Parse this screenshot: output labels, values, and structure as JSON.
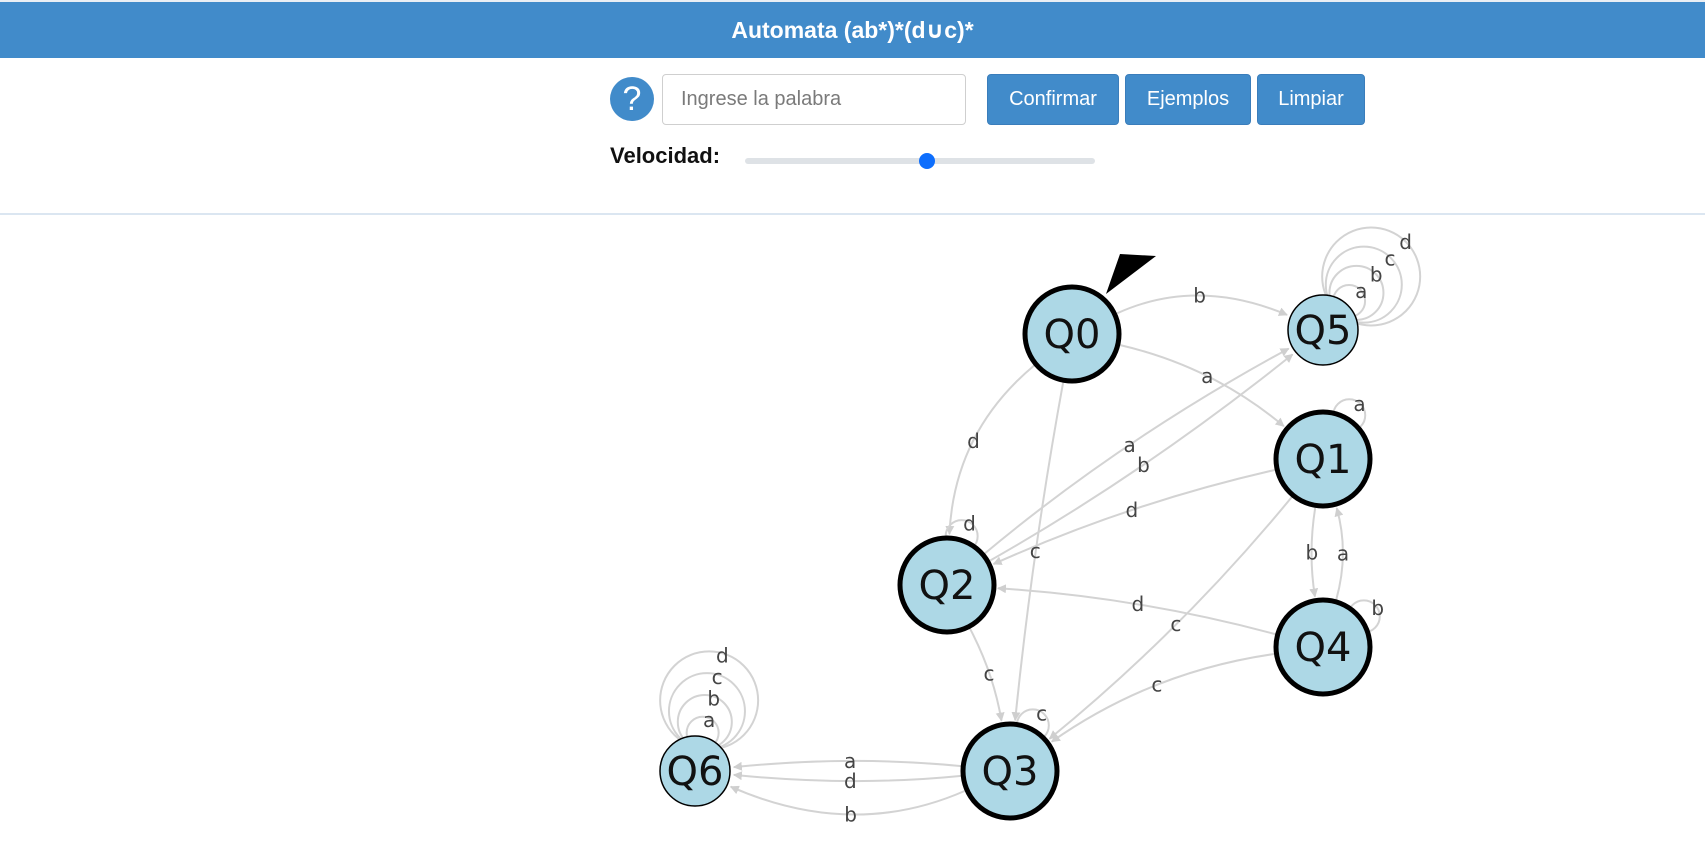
{
  "header": {
    "title": "Automata (ab*)*(d∪c)*"
  },
  "controls": {
    "help_symbol": "?",
    "word_placeholder": "Ingrese la palabra",
    "word_value": "",
    "buttons": {
      "confirm": "Confirmar",
      "examples": "Ejemplos",
      "clear": "Limpiar"
    },
    "speed_label": "Velocidad:",
    "speed_value": 0.52
  },
  "automaton": {
    "initial_state": "Q0",
    "states": [
      {
        "id": "Q0",
        "final": true
      },
      {
        "id": "Q1",
        "final": true
      },
      {
        "id": "Q2",
        "final": true
      },
      {
        "id": "Q3",
        "final": true
      },
      {
        "id": "Q4",
        "final": true
      },
      {
        "id": "Q5",
        "final": false
      },
      {
        "id": "Q6",
        "final": false
      }
    ],
    "transitions": [
      {
        "from": "Q0",
        "to": "Q5",
        "symbol": "b"
      },
      {
        "from": "Q0",
        "to": "Q1",
        "symbol": "a"
      },
      {
        "from": "Q0",
        "to": "Q2",
        "symbol": "d"
      },
      {
        "from": "Q0",
        "to": "Q3",
        "symbol": "c"
      },
      {
        "from": "Q1",
        "to": "Q1",
        "symbol": "a"
      },
      {
        "from": "Q1",
        "to": "Q4",
        "symbol": "b"
      },
      {
        "from": "Q1",
        "to": "Q2",
        "symbol": "d"
      },
      {
        "from": "Q1",
        "to": "Q3",
        "symbol": "c"
      },
      {
        "from": "Q2",
        "to": "Q2",
        "symbol": "d"
      },
      {
        "from": "Q2",
        "to": "Q3",
        "symbol": "c"
      },
      {
        "from": "Q2",
        "to": "Q5",
        "symbol": "a"
      },
      {
        "from": "Q2",
        "to": "Q5",
        "symbol": "b"
      },
      {
        "from": "Q3",
        "to": "Q3",
        "symbol": "c"
      },
      {
        "from": "Q3",
        "to": "Q6",
        "symbol": "a"
      },
      {
        "from": "Q3",
        "to": "Q6",
        "symbol": "d"
      },
      {
        "from": "Q3",
        "to": "Q6",
        "symbol": "b"
      },
      {
        "from": "Q4",
        "to": "Q4",
        "symbol": "b"
      },
      {
        "from": "Q4",
        "to": "Q1",
        "symbol": "a"
      },
      {
        "from": "Q4",
        "to": "Q2",
        "symbol": "d"
      },
      {
        "from": "Q4",
        "to": "Q3",
        "symbol": "c"
      },
      {
        "from": "Q5",
        "to": "Q5",
        "symbol": "a"
      },
      {
        "from": "Q5",
        "to": "Q5",
        "symbol": "b"
      },
      {
        "from": "Q5",
        "to": "Q5",
        "symbol": "c"
      },
      {
        "from": "Q5",
        "to": "Q5",
        "symbol": "d"
      },
      {
        "from": "Q6",
        "to": "Q6",
        "symbol": "a"
      },
      {
        "from": "Q6",
        "to": "Q6",
        "symbol": "b"
      },
      {
        "from": "Q6",
        "to": "Q6",
        "symbol": "c"
      },
      {
        "from": "Q6",
        "to": "Q6",
        "symbol": "d"
      }
    ]
  }
}
